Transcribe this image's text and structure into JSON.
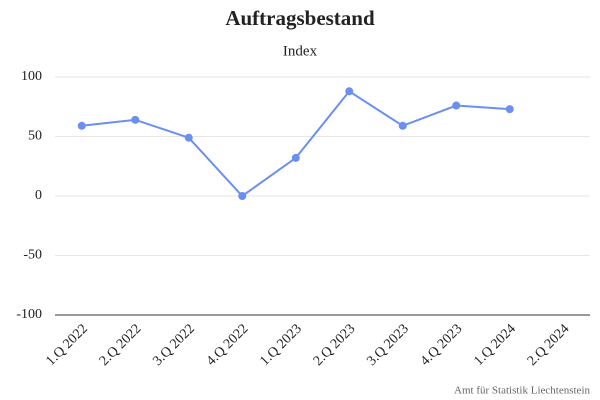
{
  "chart_data": {
    "type": "line",
    "title": "Auftragsbestand",
    "subtitle": "Index",
    "categories": [
      "1.Q 2022",
      "2.Q 2022",
      "3.Q 2022",
      "4.Q 2022",
      "1.Q 2023",
      "2.Q 2023",
      "3.Q 2023",
      "4.Q 2023",
      "1.Q 2024",
      "2.Q 2024"
    ],
    "values": [
      59,
      64,
      49,
      0,
      32,
      88,
      59,
      76,
      73,
      null
    ],
    "color": "#6b8ff0",
    "ylim": [
      -100,
      100
    ],
    "yticks": [
      -100,
      -50,
      0,
      50,
      100
    ],
    "grid": true,
    "credit": "Amt für Statistik Liechtenstein"
  }
}
